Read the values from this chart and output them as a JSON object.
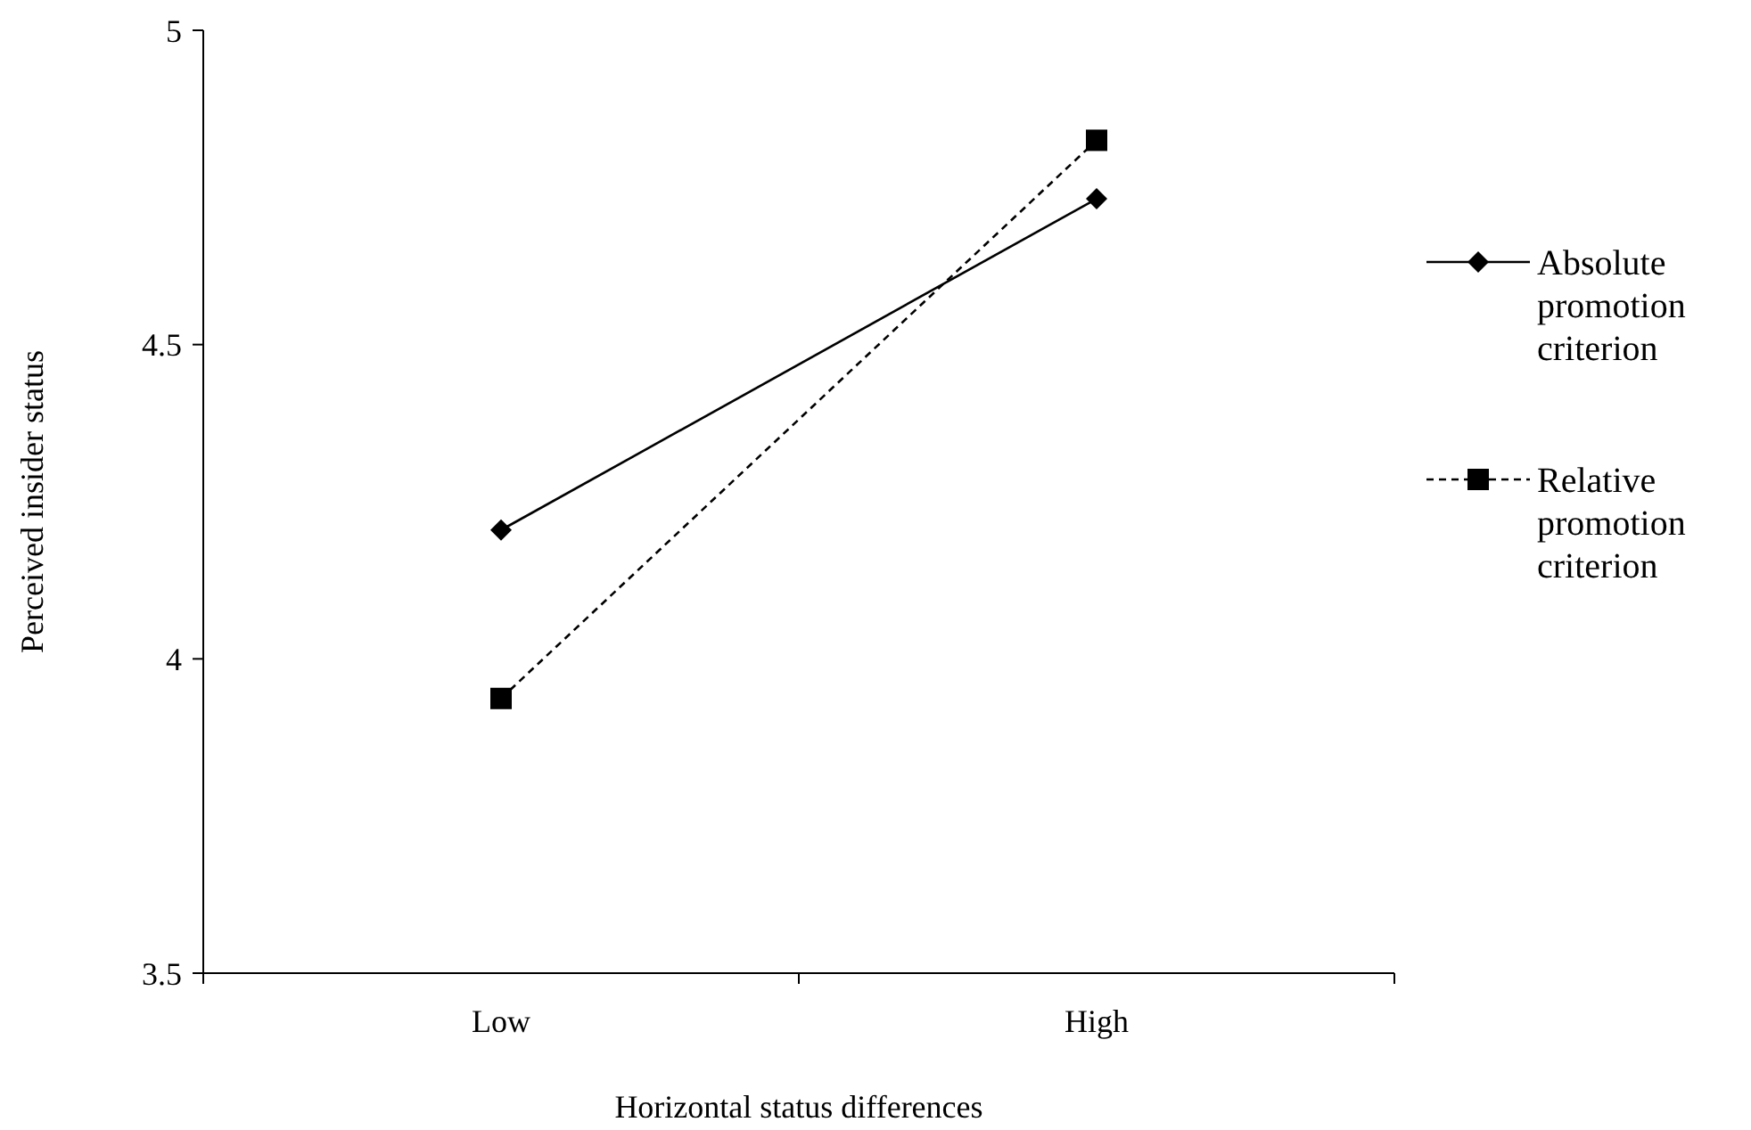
{
  "chart_data": {
    "type": "line",
    "xlabel": "Horizontal status differences",
    "ylabel": "Perceived insider status",
    "categories": [
      "Low",
      "High"
    ],
    "series": [
      {
        "name": "Absolute promotion criterion",
        "color": "#000000",
        "values": [
          4.205,
          4.732
        ],
        "marker": "diamond",
        "line_style": "solid"
      },
      {
        "name": "Relative promotion criterion",
        "color": "#000000",
        "values": [
          3.937,
          4.825
        ],
        "marker": "square",
        "line_style": "dashed"
      }
    ],
    "ylim": [
      3.5,
      5
    ],
    "yticks": [
      {
        "value": 3.5,
        "label": "3.5"
      },
      {
        "value": 4,
        "label": "4"
      },
      {
        "value": 4.5,
        "label": "4.5"
      },
      {
        "value": 5,
        "label": "5"
      }
    ],
    "grid": false,
    "legend": "right"
  }
}
